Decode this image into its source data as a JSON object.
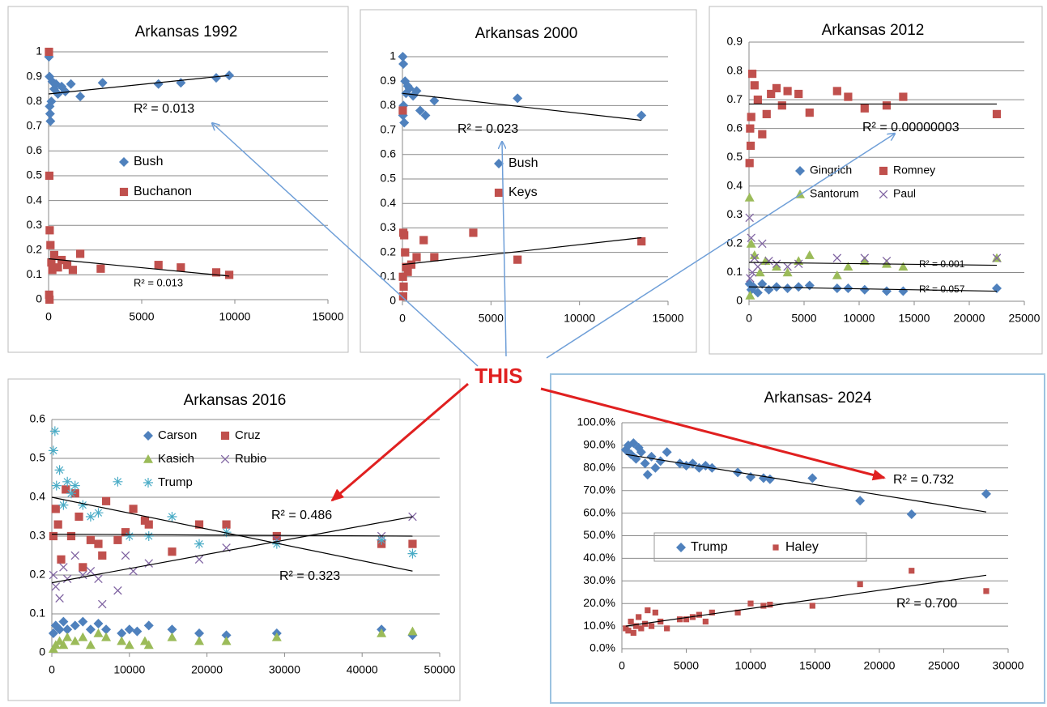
{
  "callout": "THIS",
  "chart_data": [
    {
      "type": "scatter",
      "title": "Arkansas 1992",
      "xlim": [
        0,
        15000
      ],
      "ylim": [
        0,
        1
      ],
      "xticks": [
        0,
        5000,
        10000,
        15000
      ],
      "yticks": [
        0,
        0.1,
        0.2,
        0.3,
        0.4,
        0.5,
        0.6,
        0.7,
        0.8,
        0.9,
        1
      ],
      "grid": true,
      "series": [
        {
          "name": "Bush",
          "color": "#4f81bd",
          "marker": "diamond",
          "x": [
            20,
            50,
            100,
            150,
            200,
            300,
            400,
            500,
            700,
            900,
            1200,
            1700,
            2900,
            5900,
            7100,
            9000,
            9700,
            80,
            60
          ],
          "values": [
            0.98,
            0.9,
            0.72,
            0.8,
            0.88,
            0.85,
            0.87,
            0.83,
            0.86,
            0.84,
            0.87,
            0.82,
            0.875,
            0.87,
            0.875,
            0.895,
            0.905,
            0.75,
            0.78
          ]
        },
        {
          "name": "Buchanon",
          "color": "#c0504d",
          "marker": "square",
          "x": [
            20,
            40,
            60,
            100,
            150,
            200,
            300,
            500,
            700,
            1000,
            1300,
            1700,
            2800,
            5900,
            7100,
            9000,
            9700,
            30,
            50
          ],
          "values": [
            1.0,
            0.5,
            0.28,
            0.22,
            0.15,
            0.12,
            0.18,
            0.13,
            0.16,
            0.14,
            0.12,
            0.185,
            0.125,
            0.14,
            0.13,
            0.11,
            0.1,
            0.02,
            0.0
          ]
        }
      ],
      "trendlines": [
        {
          "x": [
            0,
            9700
          ],
          "values": [
            0.83,
            0.905
          ]
        },
        {
          "x": [
            0,
            9700
          ],
          "values": [
            0.165,
            0.095
          ]
        }
      ],
      "annotations": [
        "R² = 0.013",
        "R² = 0.013"
      ]
    },
    {
      "type": "scatter",
      "title": "Arkansas 2000",
      "xlim": [
        0,
        15000
      ],
      "ylim": [
        0,
        1
      ],
      "xticks": [
        0,
        5000,
        10000,
        15000
      ],
      "yticks": [
        0,
        0.1,
        0.2,
        0.3,
        0.4,
        0.5,
        0.6,
        0.7,
        0.8,
        0.9,
        1
      ],
      "grid": true,
      "series": [
        {
          "name": "Bush",
          "color": "#4f81bd",
          "marker": "diamond",
          "x": [
            20,
            50,
            100,
            150,
            200,
            300,
            400,
            600,
            800,
            1000,
            1300,
            1800,
            6500,
            13500,
            60,
            30
          ],
          "values": [
            1.0,
            0.97,
            0.73,
            0.9,
            0.85,
            0.88,
            0.87,
            0.84,
            0.86,
            0.78,
            0.76,
            0.82,
            0.83,
            0.76,
            0.8,
            0.76
          ]
        },
        {
          "name": "Keys",
          "color": "#c0504d",
          "marker": "square",
          "x": [
            20,
            50,
            100,
            150,
            200,
            300,
            500,
            800,
            1200,
            1800,
            4000,
            6500,
            13500,
            40,
            70,
            30
          ],
          "values": [
            0.78,
            0.28,
            0.27,
            0.2,
            0.14,
            0.12,
            0.15,
            0.18,
            0.25,
            0.18,
            0.28,
            0.17,
            0.245,
            0.02,
            0.06,
            0.1
          ]
        }
      ],
      "trendlines": [
        {
          "x": [
            0,
            13500
          ],
          "values": [
            0.85,
            0.74
          ]
        },
        {
          "x": [
            0,
            13500
          ],
          "values": [
            0.15,
            0.26
          ]
        }
      ],
      "annotations": [
        "R² = 0.023"
      ]
    },
    {
      "type": "scatter",
      "title": "Arkansas 2012",
      "xlim": [
        0,
        25000
      ],
      "ylim": [
        0,
        0.9
      ],
      "xticks": [
        0,
        5000,
        10000,
        15000,
        20000,
        25000
      ],
      "yticks": [
        0,
        0.1,
        0.2,
        0.3,
        0.4,
        0.5,
        0.6,
        0.7,
        0.8,
        0.9
      ],
      "grid": true,
      "series": [
        {
          "name": "Gingrich",
          "color": "#4f81bd",
          "marker": "diamond",
          "x": [
            50,
            200,
            400,
            800,
            1200,
            1800,
            2500,
            3500,
            4500,
            5500,
            8000,
            9000,
            10500,
            12500,
            14000,
            22500
          ],
          "values": [
            0.06,
            0.04,
            0.05,
            0.03,
            0.06,
            0.04,
            0.05,
            0.045,
            0.05,
            0.055,
            0.045,
            0.045,
            0.04,
            0.035,
            0.035,
            0.045
          ]
        },
        {
          "name": "Romney",
          "color": "#c0504d",
          "marker": "square",
          "x": [
            50,
            150,
            300,
            500,
            800,
            1200,
            1600,
            2000,
            2500,
            3000,
            3500,
            4500,
            5500,
            8000,
            9000,
            10500,
            12500,
            14000,
            22500,
            100,
            200
          ],
          "values": [
            0.48,
            0.54,
            0.79,
            0.75,
            0.7,
            0.58,
            0.65,
            0.72,
            0.74,
            0.68,
            0.73,
            0.72,
            0.655,
            0.73,
            0.71,
            0.67,
            0.68,
            0.71,
            0.65,
            0.6,
            0.64
          ]
        },
        {
          "name": "Santorum",
          "color": "#9bbb59",
          "marker": "triangle",
          "x": [
            50,
            200,
            500,
            1000,
            1500,
            2500,
            3500,
            4500,
            5500,
            8000,
            9000,
            10500,
            12500,
            14000,
            22500,
            100
          ],
          "values": [
            0.36,
            0.2,
            0.16,
            0.1,
            0.14,
            0.12,
            0.1,
            0.14,
            0.16,
            0.09,
            0.12,
            0.14,
            0.13,
            0.12,
            0.15,
            0.02
          ]
        },
        {
          "name": "Paul",
          "color": "#8064a2",
          "marker": "x",
          "x": [
            50,
            200,
            500,
            800,
            1200,
            1800,
            2500,
            3500,
            4500,
            8000,
            10500,
            12500,
            22500,
            100,
            300
          ],
          "values": [
            0.29,
            0.22,
            0.15,
            0.12,
            0.2,
            0.14,
            0.13,
            0.12,
            0.13,
            0.15,
            0.15,
            0.14,
            0.15,
            0.08,
            0.1
          ]
        }
      ],
      "trendlines": [
        {
          "x": [
            0,
            22500
          ],
          "values": [
            0.685,
            0.685
          ]
        },
        {
          "x": [
            0,
            22500
          ],
          "values": [
            0.135,
            0.125
          ]
        },
        {
          "x": [
            0,
            22500
          ],
          "values": [
            0.05,
            0.035
          ]
        }
      ],
      "annotations": [
        "R² = 0.00000003",
        "R² = 0.001",
        "R² = 0.057"
      ]
    },
    {
      "type": "scatter",
      "title": "Arkansas 2016",
      "xlim": [
        0,
        50000
      ],
      "ylim": [
        0,
        0.6
      ],
      "xticks": [
        0,
        10000,
        20000,
        30000,
        40000,
        50000
      ],
      "yticks": [
        0,
        0.1,
        0.2,
        0.3,
        0.4,
        0.5,
        0.6
      ],
      "grid": true,
      "series": [
        {
          "name": "Carson",
          "color": "#4f81bd",
          "marker": "diamond",
          "x": [
            200,
            500,
            1000,
            1500,
            2000,
            3000,
            4000,
            5000,
            6000,
            7000,
            9000,
            10000,
            11000,
            12500,
            15500,
            19000,
            22500,
            29000,
            42500,
            46500
          ],
          "values": [
            0.05,
            0.07,
            0.06,
            0.08,
            0.06,
            0.07,
            0.08,
            0.06,
            0.075,
            0.06,
            0.05,
            0.06,
            0.055,
            0.07,
            0.06,
            0.05,
            0.045,
            0.05,
            0.06,
            0.045
          ]
        },
        {
          "name": "Cruz",
          "color": "#c0504d",
          "marker": "square",
          "x": [
            200,
            500,
            800,
            1200,
            1800,
            2500,
            3000,
            3500,
            4000,
            5000,
            6000,
            6500,
            7000,
            8500,
            9500,
            10500,
            12000,
            12500,
            15500,
            19000,
            22500,
            29000,
            42500,
            46500
          ],
          "values": [
            0.3,
            0.37,
            0.33,
            0.24,
            0.42,
            0.3,
            0.41,
            0.35,
            0.22,
            0.29,
            0.28,
            0.25,
            0.39,
            0.29,
            0.31,
            0.37,
            0.34,
            0.33,
            0.26,
            0.33,
            0.33,
            0.3,
            0.28,
            0.28
          ]
        },
        {
          "name": "Kasich",
          "color": "#9bbb59",
          "marker": "triangle",
          "x": [
            200,
            500,
            1000,
            1500,
            2000,
            3000,
            4000,
            5000,
            6000,
            7000,
            9000,
            10000,
            12000,
            12500,
            15500,
            19000,
            22500,
            29000,
            42500,
            46500
          ],
          "values": [
            0.01,
            0.02,
            0.03,
            0.02,
            0.04,
            0.03,
            0.04,
            0.02,
            0.05,
            0.04,
            0.03,
            0.02,
            0.03,
            0.02,
            0.04,
            0.03,
            0.03,
            0.04,
            0.05,
            0.055
          ]
        },
        {
          "name": "Rubio",
          "color": "#8064a2",
          "marker": "x",
          "x": [
            200,
            500,
            1000,
            1500,
            2000,
            3000,
            4000,
            5000,
            6000,
            6500,
            8500,
            9500,
            10500,
            12500,
            19000,
            22500,
            29000,
            42500,
            46500
          ],
          "values": [
            0.2,
            0.17,
            0.14,
            0.22,
            0.19,
            0.25,
            0.2,
            0.21,
            0.19,
            0.125,
            0.16,
            0.25,
            0.21,
            0.23,
            0.24,
            0.27,
            0.29,
            0.3,
            0.35
          ]
        },
        {
          "name": "Trump",
          "color": "#4bacc6",
          "marker": "star",
          "x": [
            200,
            400,
            600,
            1000,
            1500,
            2000,
            2500,
            3000,
            4000,
            5000,
            6000,
            8500,
            10000,
            12500,
            15500,
            19000,
            22500,
            29000,
            42500,
            46500
          ],
          "values": [
            0.52,
            0.57,
            0.43,
            0.47,
            0.38,
            0.44,
            0.41,
            0.43,
            0.38,
            0.35,
            0.36,
            0.44,
            0.3,
            0.3,
            0.35,
            0.28,
            0.31,
            0.28,
            0.29,
            0.255
          ]
        }
      ],
      "trendlines": [
        {
          "x": [
            0,
            46500
          ],
          "values": [
            0.4,
            0.21
          ]
        },
        {
          "x": [
            0,
            46500
          ],
          "values": [
            0.305,
            0.3
          ]
        },
        {
          "x": [
            0,
            46500
          ],
          "values": [
            0.18,
            0.35
          ]
        }
      ],
      "annotations": [
        "R² = 0.486",
        "R² = 0.323"
      ]
    },
    {
      "type": "scatter",
      "title": "Arkansas- 2024",
      "xlim": [
        0,
        30000
      ],
      "ylim": [
        0,
        100
      ],
      "xticks": [
        0,
        5000,
        10000,
        15000,
        20000,
        25000,
        30000
      ],
      "yticks": [
        {
          "value": 0,
          "label": "0.0%"
        },
        {
          "value": 10,
          "label": "10.0%"
        },
        {
          "value": 20,
          "label": "20.0%"
        },
        {
          "value": 30,
          "label": "30.0%"
        },
        {
          "value": 40,
          "label": "40.0%"
        },
        {
          "value": 50,
          "label": "50.0%"
        },
        {
          "value": 60,
          "label": "60.0%"
        },
        {
          "value": 70,
          "label": "70.0%"
        },
        {
          "value": 80,
          "label": "80.0%"
        },
        {
          "value": 90,
          "label": "90.0%"
        },
        {
          "value": 100,
          "label": "100.0%"
        }
      ],
      "grid": true,
      "series": [
        {
          "name": "Trump",
          "color": "#4f81bd",
          "marker": "diamond",
          "x": [
            300,
            500,
            700,
            900,
            1100,
            1300,
            1500,
            1800,
            2000,
            2300,
            2600,
            3000,
            3500,
            4500,
            5000,
            5500,
            6000,
            6500,
            7000,
            9000,
            10000,
            11000,
            11500,
            14800,
            18500,
            22500,
            28300
          ],
          "values": [
            88,
            90,
            86,
            91,
            84,
            89,
            87,
            82,
            77,
            85,
            80,
            83,
            87,
            82,
            81,
            82,
            80,
            81,
            80,
            78,
            76,
            75.5,
            75,
            75.5,
            65.5,
            59.5,
            68.5
          ]
        },
        {
          "name": "Haley",
          "color": "#c0504d",
          "marker": "smallsquare",
          "x": [
            300,
            500,
            700,
            900,
            1100,
            1300,
            1500,
            1800,
            2000,
            2300,
            2600,
            3000,
            3500,
            4500,
            5000,
            5500,
            6000,
            6500,
            7000,
            9000,
            10000,
            11000,
            11500,
            14800,
            18500,
            22500,
            28300
          ],
          "values": [
            9,
            8,
            12,
            7,
            10,
            14,
            9,
            11,
            17,
            10,
            16,
            12,
            9,
            13,
            13,
            14,
            15,
            12,
            16,
            16,
            20,
            19,
            19.5,
            19,
            28.5,
            34.5,
            25.5
          ]
        }
      ],
      "trendlines": [
        {
          "x": [
            300,
            28300
          ],
          "values": [
            86,
            60.5
          ]
        },
        {
          "x": [
            300,
            28300
          ],
          "values": [
            10,
            32.5
          ]
        }
      ],
      "annotations": [
        "R² = 0.732",
        "R² = 0.700"
      ]
    }
  ]
}
